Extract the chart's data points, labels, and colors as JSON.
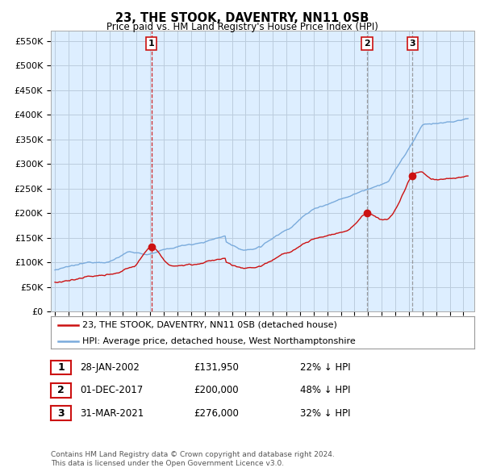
{
  "title": "23, THE STOOK, DAVENTRY, NN11 0SB",
  "subtitle": "Price paid vs. HM Land Registry's House Price Index (HPI)",
  "ylabel_ticks": [
    "£0",
    "£50K",
    "£100K",
    "£150K",
    "£200K",
    "£250K",
    "£300K",
    "£350K",
    "£400K",
    "£450K",
    "£500K",
    "£550K"
  ],
  "ytick_values": [
    0,
    50000,
    100000,
    150000,
    200000,
    250000,
    300000,
    350000,
    400000,
    450000,
    500000,
    550000
  ],
  "ylim": [
    0,
    570000
  ],
  "hpi_color": "#7aabdc",
  "price_color": "#cc1111",
  "vline1_color": "#cc1111",
  "vline23_color": "#888888",
  "bg_plot_color": "#ddeeff",
  "background_color": "#ffffff",
  "grid_color": "#bbccdd",
  "sale_points": [
    {
      "date_num": 2002.08,
      "price": 131950,
      "label": "1"
    },
    {
      "date_num": 2017.92,
      "price": 200000,
      "label": "2"
    },
    {
      "date_num": 2021.25,
      "price": 276000,
      "label": "3"
    }
  ],
  "legend_entries": [
    "23, THE STOOK, DAVENTRY, NN11 0SB (detached house)",
    "HPI: Average price, detached house, West Northamptonshire"
  ],
  "table_rows": [
    {
      "num": "1",
      "date": "28-JAN-2002",
      "price": "£131,950",
      "pct": "22% ↓ HPI"
    },
    {
      "num": "2",
      "date": "01-DEC-2017",
      "price": "£200,000",
      "pct": "48% ↓ HPI"
    },
    {
      "num": "3",
      "date": "31-MAR-2021",
      "price": "£276,000",
      "pct": "32% ↓ HPI"
    }
  ],
  "footnote1": "Contains HM Land Registry data © Crown copyright and database right 2024.",
  "footnote2": "This data is licensed under the Open Government Licence v3.0."
}
